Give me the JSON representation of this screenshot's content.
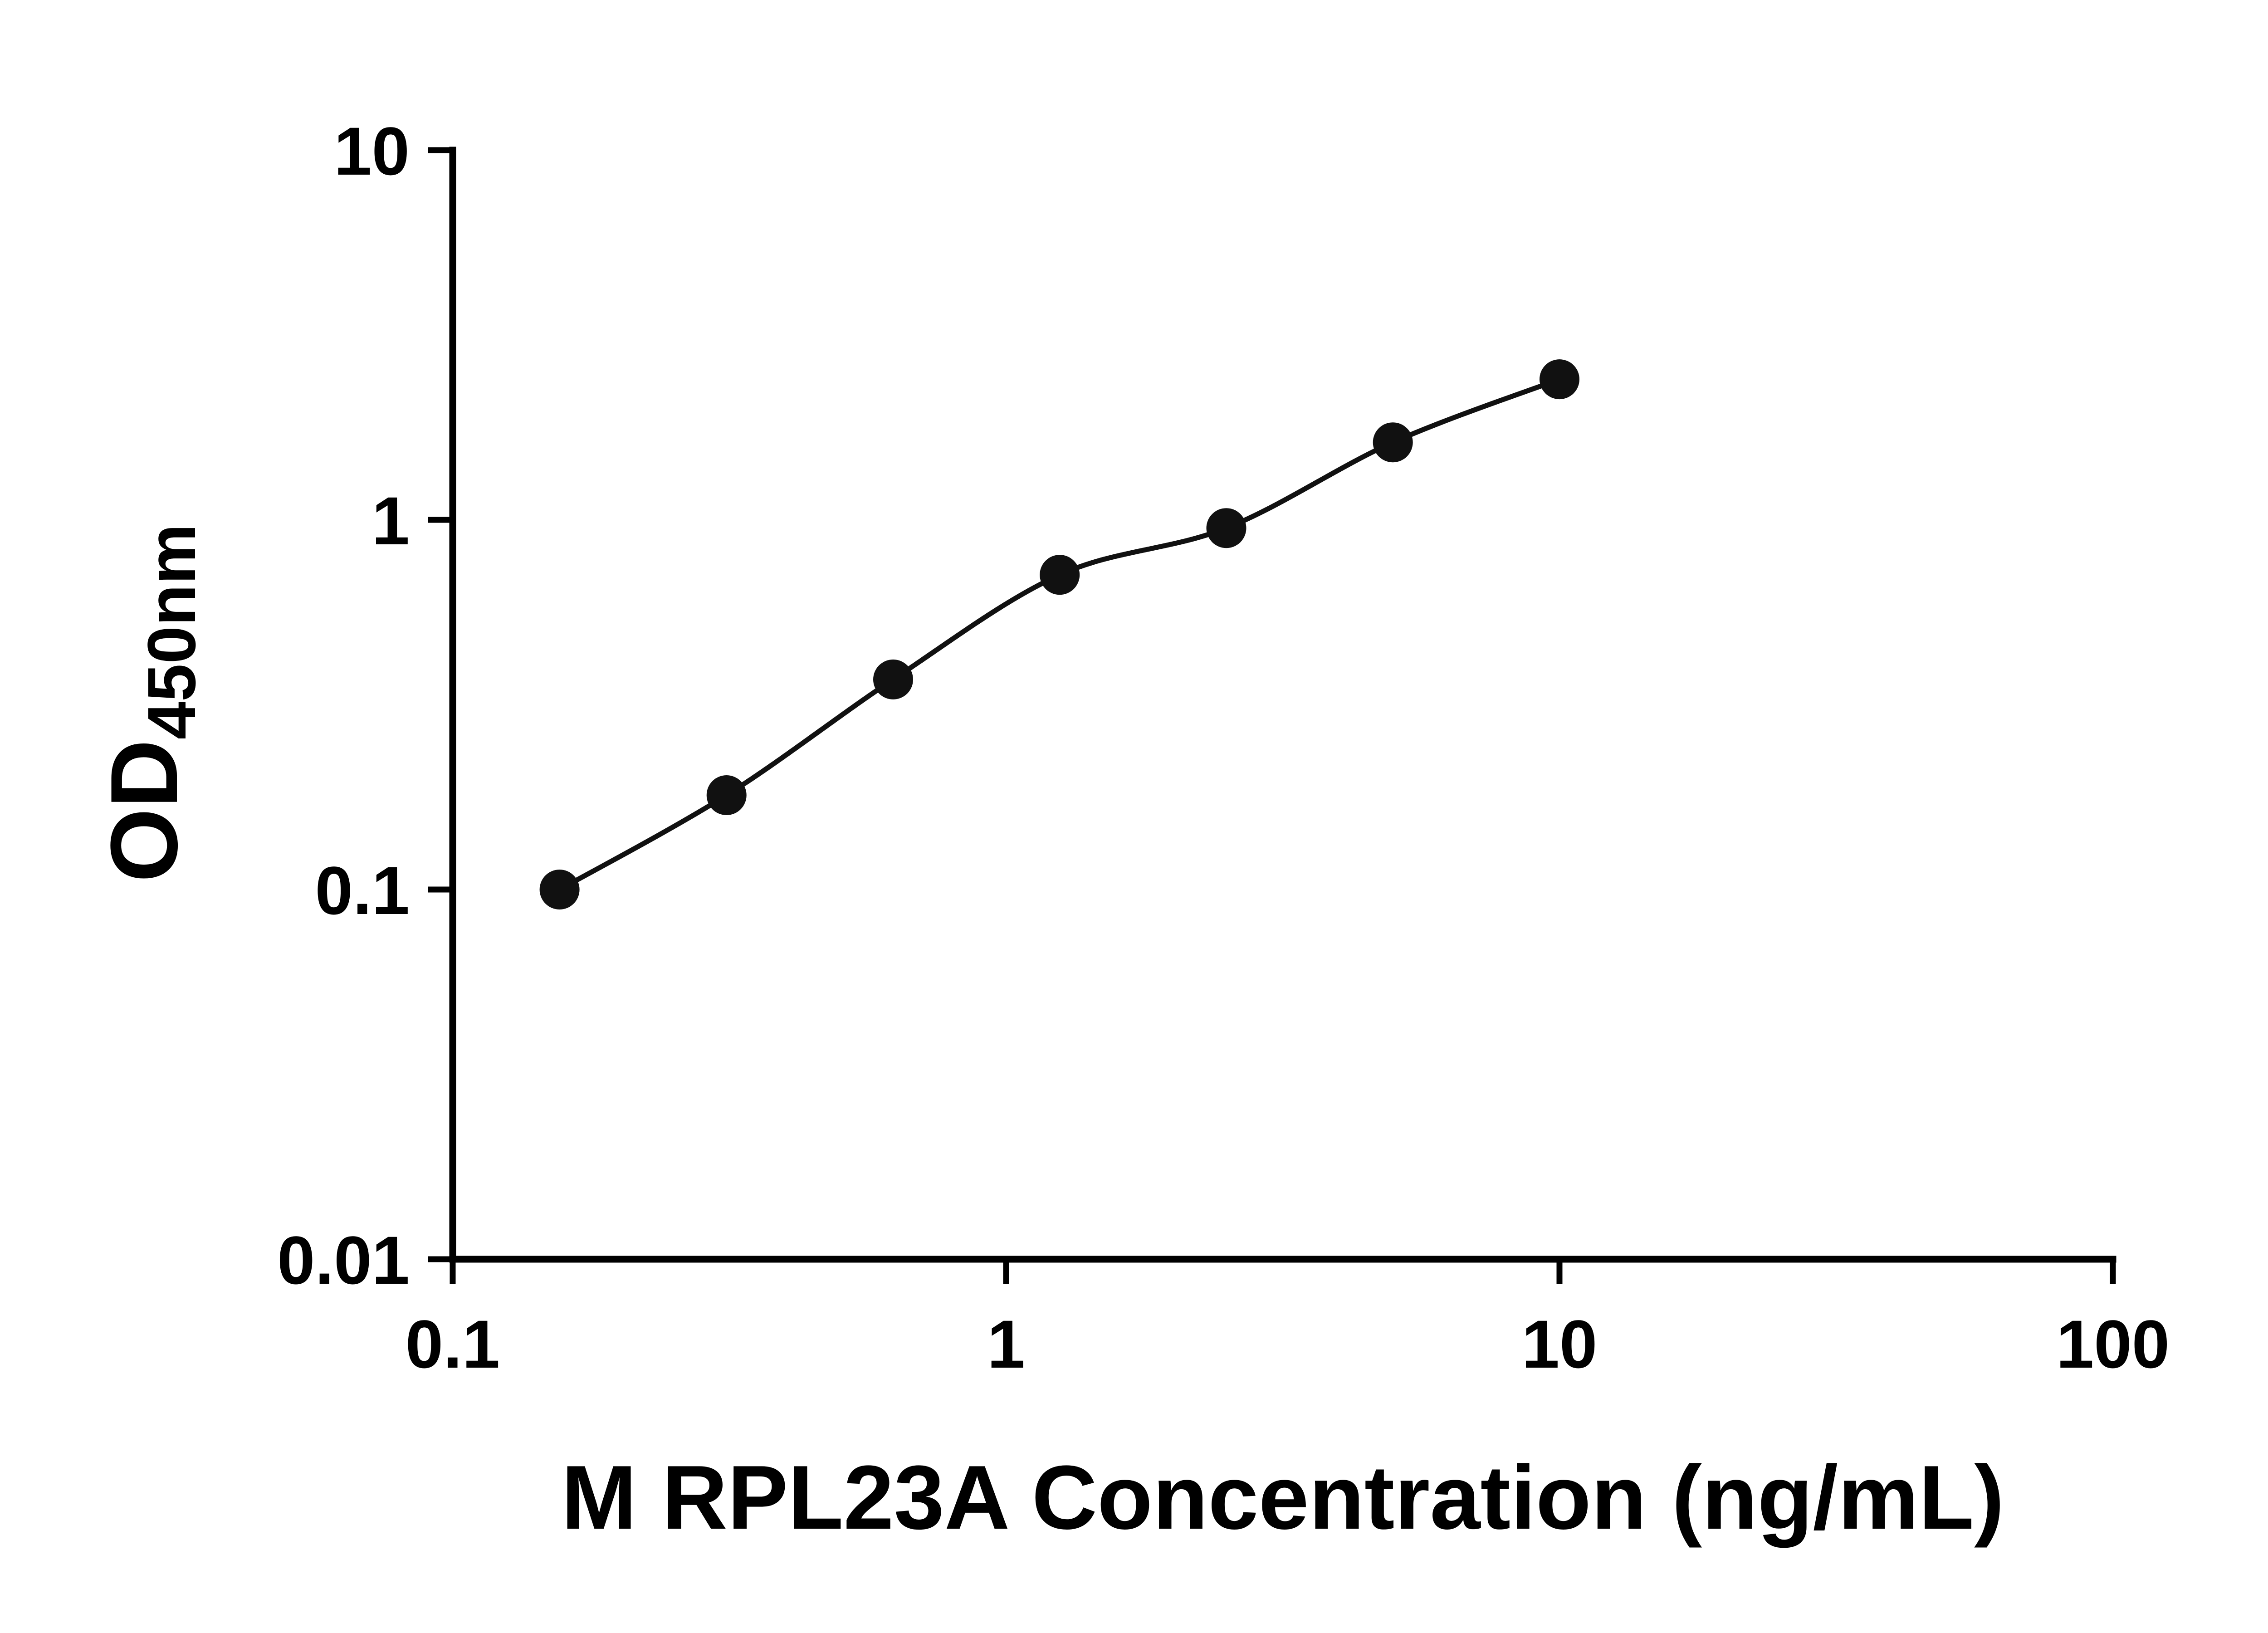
{
  "chart_data": {
    "type": "scatter",
    "title": "",
    "xlabel": "M RPL23A Concentration (ng/mL)",
    "ylabel_main": "OD",
    "ylabel_sub": "450nm",
    "x_scale": "log",
    "y_scale": "log",
    "xlim": [
      0.1,
      100
    ],
    "ylim": [
      0.01,
      10
    ],
    "grid": false,
    "legend": null,
    "fit_line": true,
    "x_ticks": [
      {
        "value": 0.1,
        "label": "0.1"
      },
      {
        "value": 1,
        "label": "1"
      },
      {
        "value": 10,
        "label": "10"
      },
      {
        "value": 100,
        "label": "100"
      }
    ],
    "y_ticks": [
      {
        "value": 0.01,
        "label": "0.01"
      },
      {
        "value": 0.1,
        "label": "0.1"
      },
      {
        "value": 1,
        "label": "1"
      },
      {
        "value": 10,
        "label": "10"
      }
    ],
    "points": [
      {
        "x": 0.156,
        "y": 0.1
      },
      {
        "x": 0.3125,
        "y": 0.18
      },
      {
        "x": 0.625,
        "y": 0.37
      },
      {
        "x": 1.25,
        "y": 0.71
      },
      {
        "x": 2.5,
        "y": 0.95
      },
      {
        "x": 5,
        "y": 1.62
      },
      {
        "x": 10,
        "y": 2.4
      }
    ],
    "colors": {
      "marker": "#111111",
      "line": "#111111",
      "axis": "#000000",
      "background": "#ffffff",
      "text": "#000000"
    }
  }
}
